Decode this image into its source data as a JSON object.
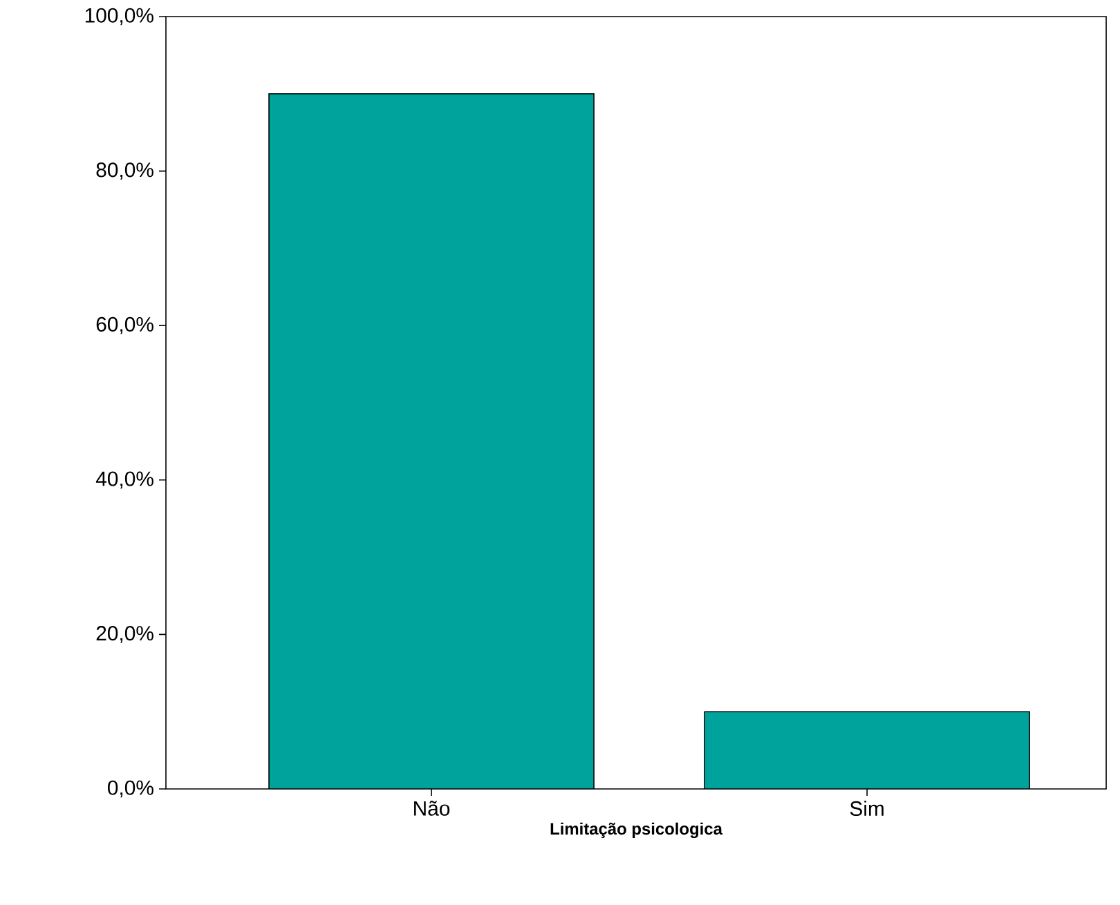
{
  "chart_data": {
    "type": "bar",
    "xlabel": "Limitação psicologica",
    "categories": [
      "Não",
      "Sim"
    ],
    "values": [
      90,
      10
    ],
    "color": "#00a39b",
    "ylim": [
      0,
      100
    ],
    "yticks": [
      {
        "value": 0,
        "label": "0,0%"
      },
      {
        "value": 20,
        "label": "20,0%"
      },
      {
        "value": 40,
        "label": "40,0%"
      },
      {
        "value": 60,
        "label": "60,0%"
      },
      {
        "value": 80,
        "label": "80,0%"
      },
      {
        "value": 100,
        "label": "100,0%"
      }
    ]
  }
}
